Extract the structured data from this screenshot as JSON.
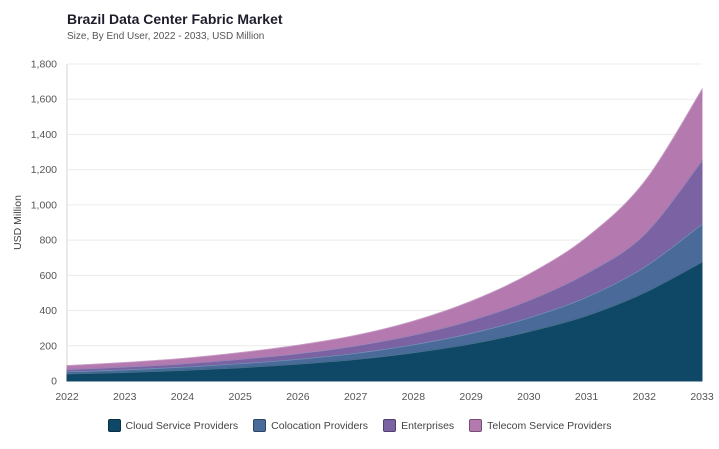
{
  "chart_data": {
    "type": "area",
    "stacked": true,
    "title": "Brazil Data Center Fabric Market",
    "subtitle": "Size, By End User, 2022 - 2033, USD Million",
    "xlabel": "",
    "ylabel": "USD Million",
    "ylim": [
      0,
      1800
    ],
    "yticks": [
      "0",
      "200",
      "400",
      "600",
      "800",
      "1,000",
      "1,200",
      "1,400",
      "1,600",
      "1,800"
    ],
    "x": [
      "2022",
      "2023",
      "2024",
      "2025",
      "2026",
      "2027",
      "2028",
      "2029",
      "2030",
      "2031",
      "2032",
      "2033"
    ],
    "grid": true,
    "legend_position": "bottom",
    "series": [
      {
        "name": "Cloud Service Providers",
        "color": "#0f4766",
        "values": [
          40,
          48,
          60,
          75,
          95,
          122,
          160,
          210,
          280,
          370,
          500,
          675
        ]
      },
      {
        "name": "Colocation Providers",
        "color": "#4a6a9a",
        "values": [
          12,
          15,
          18,
          23,
          28,
          35,
          45,
          60,
          78,
          105,
          145,
          215
        ]
      },
      {
        "name": "Enterprises",
        "color": "#7a62a3",
        "values": [
          13,
          16,
          19,
          25,
          32,
          42,
          55,
          73,
          98,
          135,
          185,
          360
        ]
      },
      {
        "name": "Telecom Service Providers",
        "color": "#b47ab0",
        "values": [
          22,
          26,
          31,
          38,
          48,
          60,
          80,
          110,
          150,
          205,
          300,
          405
        ]
      }
    ]
  }
}
